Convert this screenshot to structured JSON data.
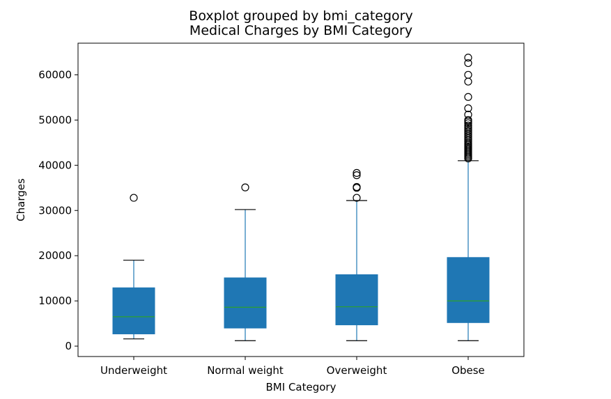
{
  "chart_data": {
    "type": "boxplot",
    "suptitle": "Boxplot grouped by bmi_category",
    "title": "Medical Charges by BMI Category",
    "xlabel": "BMI Category",
    "ylabel": "Charges",
    "ylim": [
      -2300,
      67000
    ],
    "yticks": [
      0,
      10000,
      20000,
      30000,
      40000,
      50000,
      60000
    ],
    "grid": false,
    "colors": {
      "box": "#1f77b4",
      "median": "#2ca02c",
      "whisker": "#1f77b4",
      "cap": "#000000",
      "flier": "#000000"
    },
    "categories": [
      "Underweight",
      "Normal weight",
      "Overweight",
      "Obese"
    ],
    "boxes": [
      {
        "name": "Underweight",
        "whisker_low": 1600,
        "q1": 2700,
        "median": 6500,
        "q3": 12900,
        "whisker_high": 19000,
        "fliers": [
          32800
        ]
      },
      {
        "name": "Normal weight",
        "whisker_low": 1200,
        "q1": 4000,
        "median": 8600,
        "q3": 15100,
        "whisker_high": 30200,
        "fliers": [
          35100
        ]
      },
      {
        "name": "Overweight",
        "whisker_low": 1200,
        "q1": 4700,
        "median": 8700,
        "q3": 15800,
        "whisker_high": 32200,
        "fliers": [
          32800,
          35000,
          35200,
          37800,
          38300
        ]
      },
      {
        "name": "Obese",
        "whisker_low": 1200,
        "q1": 5200,
        "median": 10000,
        "q3": 19600,
        "whisker_high": 41000,
        "fliers": [
          41500,
          41800,
          42100,
          42400,
          42700,
          43000,
          43300,
          43600,
          43900,
          44200,
          44500,
          44800,
          45200,
          45600,
          46000,
          46400,
          46800,
          47200,
          47600,
          48000,
          48400,
          48800,
          49300,
          49700,
          50000,
          51200,
          52600,
          55100,
          58500,
          60000,
          62600,
          63800
        ]
      }
    ]
  }
}
